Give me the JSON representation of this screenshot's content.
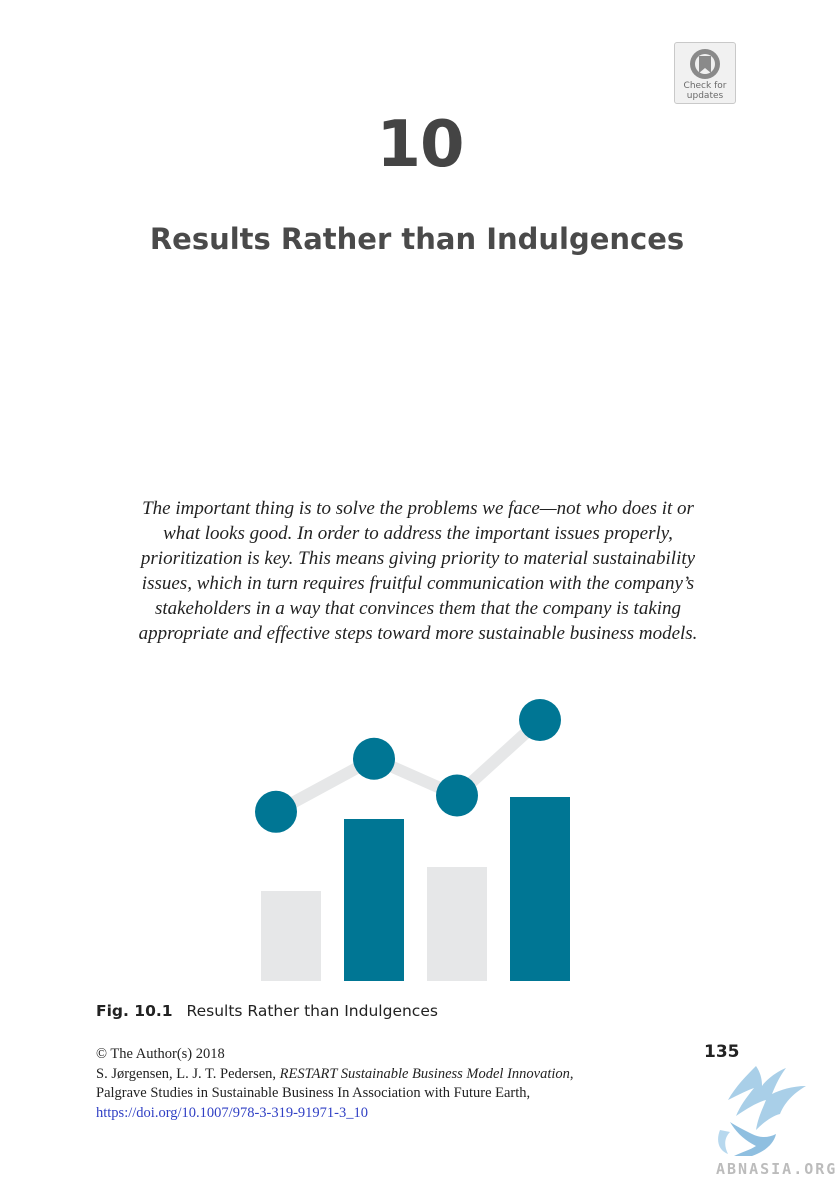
{
  "badge": {
    "line1": "Check for",
    "line2": "updates",
    "icon": "check-for-updates-icon"
  },
  "chapter": {
    "number": "10",
    "title": "Results Rather than Indulgences"
  },
  "abstract": {
    "lines": [
      "The important thing is to solve the problems we face—not who does it or",
      "what looks good. In order to address the important issues properly,",
      "prioritization is key. This means giving priority to material sustainability",
      "issues, which in turn requires fruitful communication with the company’s",
      "stakeholders in a way that convinces them that the company is taking",
      "appropriate and effective steps toward more sustainable business models."
    ]
  },
  "figure": {
    "caption_number": "Fig. 10.1",
    "caption_text": "Results Rather than Indulgences",
    "colors": {
      "teal": "#007694",
      "grey": "#e6e7e8"
    },
    "bar_levels": [
      0.45,
      0.81,
      0.57,
      0.92
    ],
    "bar_colors": [
      "grey",
      "teal",
      "grey",
      "teal"
    ],
    "point_levels": [
      0.55,
      0.81,
      0.63,
      1.0
    ]
  },
  "page_number": "135",
  "footer": {
    "copyright": "© The Author(s) 2018",
    "authors": "S. Jørgensen, L. J. T. Pedersen,",
    "book_title": "RESTART Sustainable Business Model Innovation",
    "series": "Palgrave Studies in Sustainable Business In Association with Future Earth,",
    "doi": "https://doi.org/10.1007/978-3-319-91971-3_10"
  },
  "watermark": {
    "text": "ABNASIA.ORG",
    "icon": "griffin-logo-icon"
  }
}
